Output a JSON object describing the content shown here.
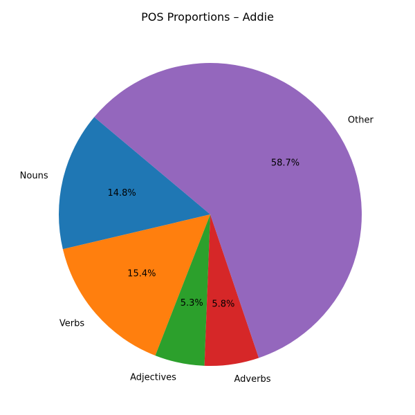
{
  "chart_data": {
    "type": "pie",
    "title": "POS Proportions – Addie",
    "start_angle_deg": 140,
    "direction": "counterclockwise",
    "slices": [
      {
        "label": "Nouns",
        "value": 14.8,
        "pct_label": "14.8%",
        "color": "#1f77b4"
      },
      {
        "label": "Verbs",
        "value": 15.4,
        "pct_label": "15.4%",
        "color": "#ff7f0e"
      },
      {
        "label": "Adjectives",
        "value": 5.3,
        "pct_label": "5.3%",
        "color": "#2ca02c"
      },
      {
        "label": "Adverbs",
        "value": 5.8,
        "pct_label": "5.8%",
        "color": "#d62728"
      },
      {
        "label": "Other",
        "value": 58.7,
        "pct_label": "58.7%",
        "color": "#9467bd"
      }
    ]
  }
}
